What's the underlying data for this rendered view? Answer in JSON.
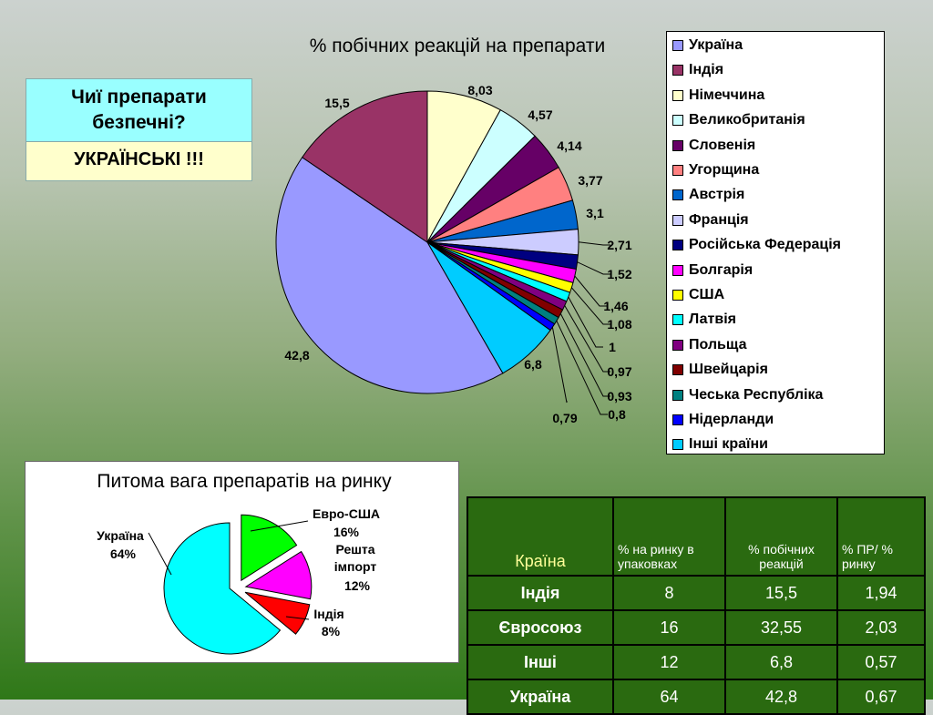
{
  "question": {
    "title": "Чиї препарати безпечні?",
    "answer": "УКРАЇНСЬКІ !!!"
  },
  "chart_data": [
    {
      "type": "pie",
      "title": "% побічних реакцій на препарати",
      "legend_position": "right",
      "slices": [
        {
          "name": "Україна",
          "value": 42.8,
          "label": "42,8",
          "color": "#9999ff"
        },
        {
          "name": "Індія",
          "value": 15.5,
          "label": "15,5",
          "color": "#993366"
        },
        {
          "name": "Німеччина",
          "value": 8.03,
          "label": "8,03",
          "color": "#ffffcc"
        },
        {
          "name": "Великобританія",
          "value": 4.57,
          "label": "4,57",
          "color": "#ccffff"
        },
        {
          "name": "Словенія",
          "value": 4.14,
          "label": "4,14",
          "color": "#660066"
        },
        {
          "name": "Угорщина",
          "value": 3.77,
          "label": "3,77",
          "color": "#ff8080"
        },
        {
          "name": "Австрія",
          "value": 3.1,
          "label": "3,1",
          "color": "#0066cc"
        },
        {
          "name": "Франція",
          "value": 2.71,
          "label": "2,71",
          "color": "#ccccff"
        },
        {
          "name": "Російська Федерація",
          "value": 1.52,
          "label": "1,52",
          "color": "#000080"
        },
        {
          "name": "Болгарія",
          "value": 1.46,
          "label": "1,46",
          "color": "#ff00ff"
        },
        {
          "name": "США",
          "value": 1.08,
          "label": "1,08",
          "color": "#ffff00"
        },
        {
          "name": "Латвія",
          "value": 1,
          "label": "1",
          "color": "#00ffff"
        },
        {
          "name": "Польща",
          "value": 0.97,
          "label": "0,97",
          "color": "#800080"
        },
        {
          "name": "Швейцарія",
          "value": 0.93,
          "label": "0,93",
          "color": "#800000"
        },
        {
          "name": "Чеська Республіка",
          "value": 0.8,
          "label": "0,8",
          "color": "#008080"
        },
        {
          "name": "Нідерланди",
          "value": 0.79,
          "label": "0,79",
          "color": "#0000ff"
        },
        {
          "name": "Інші країни",
          "value": 6.8,
          "label": "6,8",
          "color": "#00ccff"
        }
      ]
    },
    {
      "type": "pie",
      "title": "Питома вага препаратів на ринку",
      "slices": [
        {
          "name": "Євро-США",
          "value": 16,
          "label": "16%",
          "color": "#00ff00"
        },
        {
          "name": "Решта імпорт",
          "value": 12,
          "label": "12%",
          "color": "#ff00ff"
        },
        {
          "name": "Індія",
          "value": 8,
          "label": "8%",
          "color": "#ff0000"
        },
        {
          "name": "Україна",
          "value": 64,
          "label": "64%",
          "color": "#00ffff"
        }
      ],
      "text": {
        "evro": "Евро-США",
        "rest1": "Решта",
        "rest2": "імпорт",
        "india": "Індія",
        "ukraine": "Україна"
      }
    }
  ],
  "table": {
    "headers": [
      "Країна",
      "% на ринку в упаковках",
      "% побічних реакцій",
      "% ПР/ % ринку"
    ],
    "rows": [
      [
        "Індія",
        "8",
        "15,5",
        "1,94"
      ],
      [
        "Євросоюз",
        "16",
        "32,55",
        "2,03"
      ],
      [
        "Інші",
        "12",
        "6,8",
        "0,57"
      ],
      [
        "Україна",
        "64",
        "42,8",
        "0,67"
      ]
    ]
  }
}
